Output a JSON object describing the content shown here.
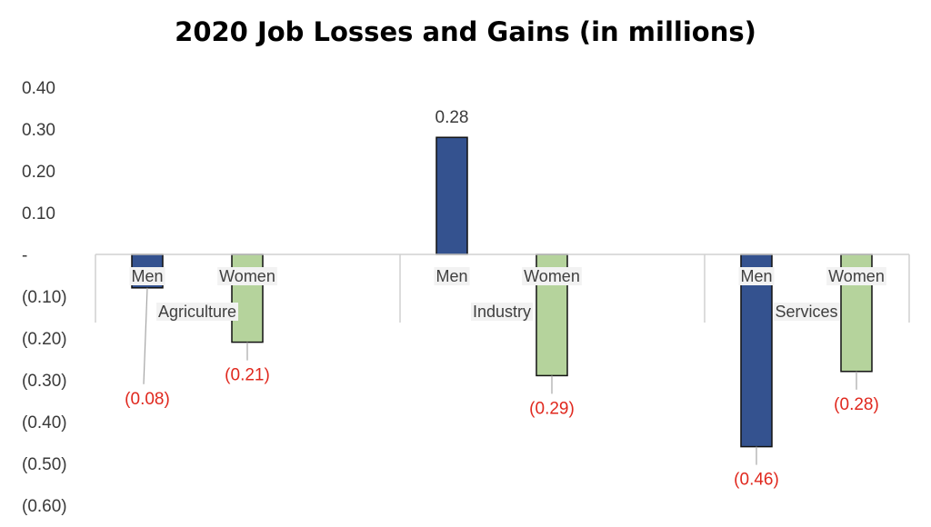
{
  "chart_data": {
    "type": "bar",
    "title": "2020 Job Losses and Gains (in millions)",
    "groups": [
      "Agriculture",
      "Industry",
      "Services"
    ],
    "subcategories": [
      "Men",
      "Women"
    ],
    "values": [
      {
        "group": "Agriculture",
        "sub": "Men",
        "value": -0.08,
        "label": "(0.08)"
      },
      {
        "group": "Agriculture",
        "sub": "Women",
        "value": -0.21,
        "label": "(0.21)"
      },
      {
        "group": "Industry",
        "sub": "Men",
        "value": 0.28,
        "label": "0.28"
      },
      {
        "group": "Industry",
        "sub": "Women",
        "value": -0.29,
        "label": "(0.29)"
      },
      {
        "group": "Services",
        "sub": "Men",
        "value": -0.46,
        "label": "(0.46)"
      },
      {
        "group": "Services",
        "sub": "Women",
        "value": -0.28,
        "label": "(0.28)"
      }
    ],
    "yticks": [
      {
        "value": 0.4,
        "label": "0.40"
      },
      {
        "value": 0.3,
        "label": "0.30"
      },
      {
        "value": 0.2,
        "label": "0.20"
      },
      {
        "value": 0.1,
        "label": "0.10"
      },
      {
        "value": 0,
        "label": "-"
      },
      {
        "value": -0.1,
        "label": "(0.10)"
      },
      {
        "value": -0.2,
        "label": "(0.20)"
      },
      {
        "value": -0.3,
        "label": "(0.30)"
      },
      {
        "value": -0.4,
        "label": "(0.40)"
      },
      {
        "value": -0.5,
        "label": "(0.50)"
      },
      {
        "value": -0.6,
        "label": "(0.60)"
      }
    ],
    "ylim": [
      -0.6,
      0.4
    ],
    "grid": false,
    "legend": "none",
    "colors": {
      "Men": "#34528f",
      "Women": "#b5d39c",
      "negative_label": "#e0281e",
      "axis": "#d0d0d0"
    }
  }
}
